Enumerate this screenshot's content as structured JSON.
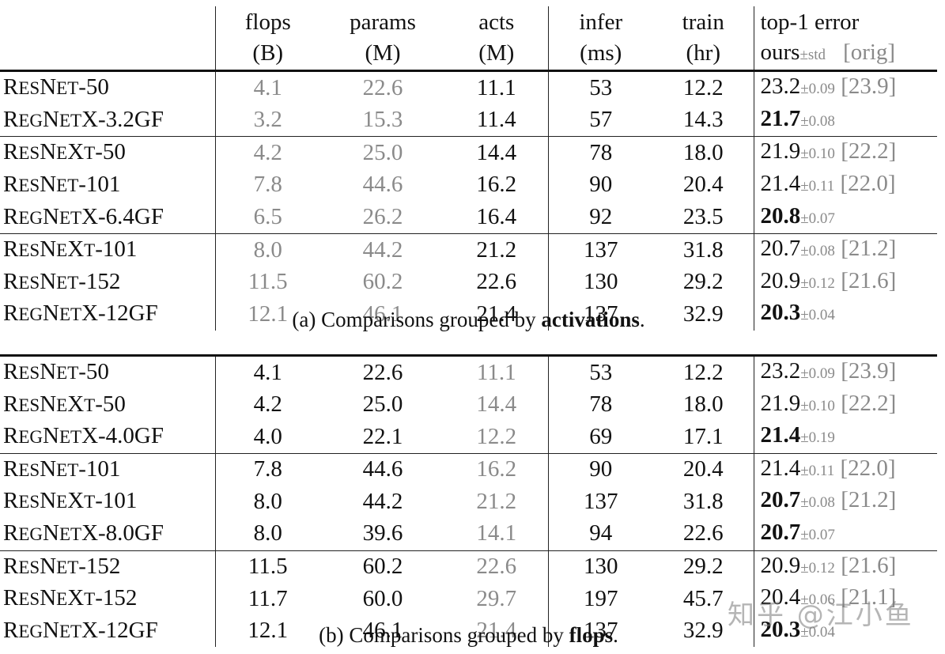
{
  "columns": {
    "flops": {
      "line1": "flops",
      "line2": "(B)"
    },
    "params": {
      "line1": "params",
      "line2": "(M)"
    },
    "acts": {
      "line1": "acts",
      "line2": "(M)"
    },
    "infer": {
      "line1": "infer",
      "line2": "(ms)"
    },
    "train": {
      "line1": "train",
      "line2": "(hr)"
    },
    "top1": {
      "line1": "top-1 error",
      "ours": "ours",
      "std": "±std",
      "orig": "[orig]"
    }
  },
  "table_a": {
    "caption_prefix": "(a) Comparisons grouped by ",
    "caption_bold": "activations",
    "caption_suffix": ".",
    "muted": [
      "flops",
      "params"
    ],
    "groups": [
      [
        {
          "name_lead": "R",
          "name_sc": "ES",
          "name_mid": "N",
          "name_sc2": "ET",
          "name_tail": "-50",
          "flops": "4.1",
          "params": "22.6",
          "acts": "11.1",
          "infer": "53",
          "train": "12.2",
          "err": "23.2",
          "std": "±0.09",
          "orig": "[23.9]",
          "best": false
        },
        {
          "name_lead": "R",
          "name_sc": "EG",
          "name_mid": "N",
          "name_sc2": "ET",
          "name_tail": "X-3.2GF",
          "flops": "3.2",
          "params": "15.3",
          "acts": "11.4",
          "infer": "57",
          "train": "14.3",
          "err": "21.7",
          "std": "±0.08",
          "orig": "",
          "best": true
        }
      ],
      [
        {
          "name_lead": "R",
          "name_sc": "ES",
          "name_mid": "N",
          "name_sc2": "E",
          "name_tail": "X",
          "name_sc3": "T",
          "name_tail2": "-50",
          "flops": "4.2",
          "params": "25.0",
          "acts": "14.4",
          "infer": "78",
          "train": "18.0",
          "err": "21.9",
          "std": "±0.10",
          "orig": "[22.2]",
          "best": false
        },
        {
          "name_lead": "R",
          "name_sc": "ES",
          "name_mid": "N",
          "name_sc2": "ET",
          "name_tail": "-101",
          "flops": "7.8",
          "params": "44.6",
          "acts": "16.2",
          "infer": "90",
          "train": "20.4",
          "err": "21.4",
          "std": "±0.11",
          "orig": "[22.0]",
          "best": false
        },
        {
          "name_lead": "R",
          "name_sc": "EG",
          "name_mid": "N",
          "name_sc2": "ET",
          "name_tail": "X-6.4GF",
          "flops": "6.5",
          "params": "26.2",
          "acts": "16.4",
          "infer": "92",
          "train": "23.5",
          "err": "20.8",
          "std": "±0.07",
          "orig": "",
          "best": true
        }
      ],
      [
        {
          "name_lead": "R",
          "name_sc": "ES",
          "name_mid": "N",
          "name_sc2": "E",
          "name_tail": "X",
          "name_sc3": "T",
          "name_tail2": "-101",
          "flops": "8.0",
          "params": "44.2",
          "acts": "21.2",
          "infer": "137",
          "train": "31.8",
          "err": "20.7",
          "std": "±0.08",
          "orig": "[21.2]",
          "best": false
        },
        {
          "name_lead": "R",
          "name_sc": "ES",
          "name_mid": "N",
          "name_sc2": "ET",
          "name_tail": "-152",
          "flops": "11.5",
          "params": "60.2",
          "acts": "22.6",
          "infer": "130",
          "train": "29.2",
          "err": "20.9",
          "std": "±0.12",
          "orig": "[21.6]",
          "best": false
        },
        {
          "name_lead": "R",
          "name_sc": "EG",
          "name_mid": "N",
          "name_sc2": "ET",
          "name_tail": "X-12GF",
          "flops": "12.1",
          "params": "46.1",
          "acts": "21.4",
          "infer": "137",
          "train": "32.9",
          "err": "20.3",
          "std": "±0.04",
          "orig": "",
          "best": true
        }
      ]
    ]
  },
  "table_b": {
    "caption_prefix": "(b) Comparisons grouped by ",
    "caption_bold": "flops",
    "caption_suffix": ".",
    "muted": [
      "acts"
    ],
    "groups": [
      [
        {
          "name_lead": "R",
          "name_sc": "ES",
          "name_mid": "N",
          "name_sc2": "ET",
          "name_tail": "-50",
          "flops": "4.1",
          "params": "22.6",
          "acts": "11.1",
          "infer": "53",
          "train": "12.2",
          "err": "23.2",
          "std": "±0.09",
          "orig": "[23.9]",
          "best": false
        },
        {
          "name_lead": "R",
          "name_sc": "ES",
          "name_mid": "N",
          "name_sc2": "E",
          "name_tail": "X",
          "name_sc3": "T",
          "name_tail2": "-50",
          "flops": "4.2",
          "params": "25.0",
          "acts": "14.4",
          "infer": "78",
          "train": "18.0",
          "err": "21.9",
          "std": "±0.10",
          "orig": "[22.2]",
          "best": false
        },
        {
          "name_lead": "R",
          "name_sc": "EG",
          "name_mid": "N",
          "name_sc2": "ET",
          "name_tail": "X-4.0GF",
          "flops": "4.0",
          "params": "22.1",
          "acts": "12.2",
          "infer": "69",
          "train": "17.1",
          "err": "21.4",
          "std": "±0.19",
          "orig": "",
          "best": true
        }
      ],
      [
        {
          "name_lead": "R",
          "name_sc": "ES",
          "name_mid": "N",
          "name_sc2": "ET",
          "name_tail": "-101",
          "flops": "7.8",
          "params": "44.6",
          "acts": "16.2",
          "infer": "90",
          "train": "20.4",
          "err": "21.4",
          "std": "±0.11",
          "orig": "[22.0]",
          "best": false
        },
        {
          "name_lead": "R",
          "name_sc": "ES",
          "name_mid": "N",
          "name_sc2": "E",
          "name_tail": "X",
          "name_sc3": "T",
          "name_tail2": "-101",
          "flops": "8.0",
          "params": "44.2",
          "acts": "21.2",
          "infer": "137",
          "train": "31.8",
          "err": "20.7",
          "std": "±0.08",
          "orig": "[21.2]",
          "best": true
        },
        {
          "name_lead": "R",
          "name_sc": "EG",
          "name_mid": "N",
          "name_sc2": "ET",
          "name_tail": "X-8.0GF",
          "flops": "8.0",
          "params": "39.6",
          "acts": "14.1",
          "infer": "94",
          "train": "22.6",
          "err": "20.7",
          "std": "±0.07",
          "orig": "",
          "best": true
        }
      ],
      [
        {
          "name_lead": "R",
          "name_sc": "ES",
          "name_mid": "N",
          "name_sc2": "ET",
          "name_tail": "-152",
          "flops": "11.5",
          "params": "60.2",
          "acts": "22.6",
          "infer": "130",
          "train": "29.2",
          "err": "20.9",
          "std": "±0.12",
          "orig": "[21.6]",
          "best": false
        },
        {
          "name_lead": "R",
          "name_sc": "ES",
          "name_mid": "N",
          "name_sc2": "E",
          "name_tail": "X",
          "name_sc3": "T",
          "name_tail2": "-152",
          "flops": "11.7",
          "params": "60.0",
          "acts": "29.7",
          "infer": "197",
          "train": "45.7",
          "err": "20.4",
          "std": "±0.06",
          "orig": "[21.1]",
          "best": false
        },
        {
          "name_lead": "R",
          "name_sc": "EG",
          "name_mid": "N",
          "name_sc2": "ET",
          "name_tail": "X-12GF",
          "flops": "12.1",
          "params": "46.1",
          "acts": "21.4",
          "infer": "137",
          "train": "32.9",
          "err": "20.3",
          "std": "±0.04",
          "orig": "",
          "best": true
        }
      ]
    ]
  },
  "watermark": "知乎 @江小鱼"
}
